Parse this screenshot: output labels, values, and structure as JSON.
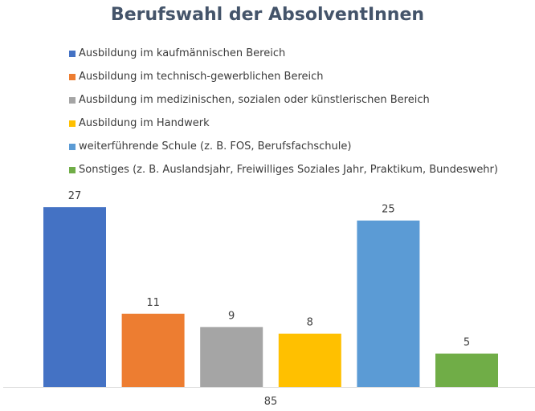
{
  "chart_data": {
    "type": "bar",
    "title": "Berufswahl der AbsolventInnen",
    "categories": [
      "85"
    ],
    "ylim": [
      0,
      30
    ],
    "grid": false,
    "legend_position": "top",
    "series": [
      {
        "name": "Ausbildung im kaufmännischen Bereich",
        "values": [
          27
        ],
        "color": "#4472C4"
      },
      {
        "name": "Ausbildung im technisch-gewerblichen Bereich",
        "values": [
          11
        ],
        "color": "#ED7D31"
      },
      {
        "name": "Ausbildung im medizinischen, sozialen oder künstlerischen Bereich",
        "values": [
          9
        ],
        "color": "#A5A5A5"
      },
      {
        "name": "Ausbildung im Handwerk",
        "values": [
          8
        ],
        "color": "#FFC000"
      },
      {
        "name": "weiterführende Schule (z. B. FOS, Berufsfachschule)",
        "values": [
          25
        ],
        "color": "#5B9BD5"
      },
      {
        "name": "Sonstiges (z. B. Auslandsjahr, Freiwilliges Soziales Jahr, Praktikum, Bundeswehr)",
        "values": [
          5
        ],
        "color": "#70AD47"
      }
    ]
  }
}
